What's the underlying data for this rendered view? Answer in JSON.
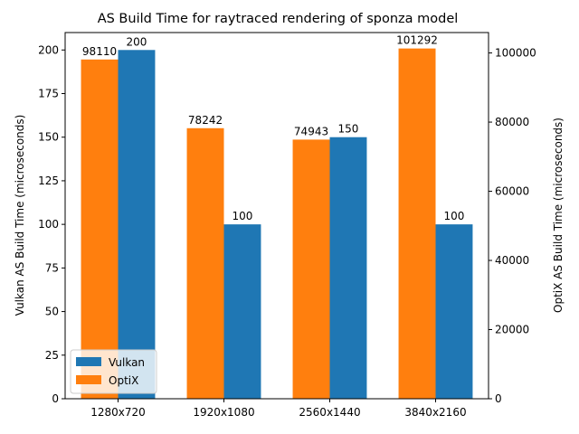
{
  "chart_data": {
    "type": "bar",
    "title": "AS Build Time for raytraced rendering of sponza model",
    "categories": [
      "1280x720",
      "1920x1080",
      "2560x1440",
      "3840x2160"
    ],
    "y_left": {
      "label": "Vulkan AS Build Time (microseconds)",
      "lim": [
        0,
        210
      ],
      "ticks": [
        0,
        25,
        50,
        75,
        100,
        125,
        150,
        175,
        200
      ]
    },
    "y_right": {
      "label": "OptiX AS Build Time (microseconds)",
      "lim": [
        0,
        105900
      ],
      "ticks": [
        0,
        20000,
        40000,
        60000,
        80000,
        100000
      ]
    },
    "series": [
      {
        "name": "OptiX",
        "axis": "right",
        "color": "#ff7f0e",
        "values": [
          98110,
          78242,
          74943,
          101292
        ]
      },
      {
        "name": "Vulkan",
        "axis": "left",
        "color": "#1f77b4",
        "values": [
          200,
          100,
          150,
          100
        ]
      }
    ],
    "legend": {
      "position": "lower-left",
      "entries": [
        {
          "name": "Vulkan",
          "color": "#1f77b4"
        },
        {
          "name": "OptiX",
          "color": "#ff7f0e"
        }
      ]
    },
    "grid": false
  }
}
